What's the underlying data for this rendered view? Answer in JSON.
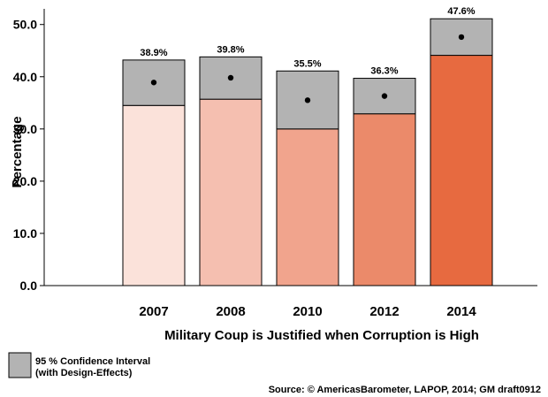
{
  "chart_data": {
    "type": "bar",
    "categories": [
      "2007",
      "2008",
      "2010",
      "2012",
      "2014"
    ],
    "values": [
      38.9,
      39.8,
      35.5,
      36.3,
      47.6
    ],
    "data_labels": [
      "38.9%",
      "39.8%",
      "35.5%",
      "36.3%",
      "47.6%"
    ],
    "ci_lower": [
      34.5,
      35.7,
      30.0,
      32.9,
      44.1
    ],
    "ci_upper": [
      43.2,
      43.8,
      41.1,
      39.7,
      51.1
    ],
    "bar_colors": [
      "#FBE2DA",
      "#F5BFB0",
      "#F1A48D",
      "#EB8A6A",
      "#E76A40"
    ],
    "ci_color": "#B3B3B3",
    "xlabel": "Military Coup is Justified when Corruption is High",
    "ylabel": "Percentage",
    "ylim": [
      0,
      53
    ],
    "yticks": [
      0,
      10,
      20,
      30,
      40,
      50
    ],
    "ytick_labels": [
      "0.0",
      "10.0",
      "20.0",
      "30.0",
      "40.0",
      "50.0"
    ],
    "grid": false,
    "legend": {
      "line1": "95 % Confidence Interval",
      "line2": "(with Design-Effects)",
      "placement": "bottom-left"
    },
    "source": "Source: © AmericasBarometer, LAPOP, 2014; GM draft0912"
  }
}
